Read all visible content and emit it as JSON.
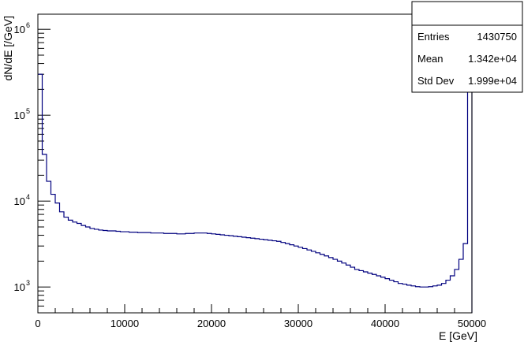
{
  "chart_data": {
    "type": "histogram",
    "xlabel": "E [GeV]",
    "ylabel": "dN/dE [/GeV]",
    "xlim": [
      0,
      50000
    ],
    "ylim": [
      500,
      1500000
    ],
    "yscale": "log",
    "grid": false,
    "x_ticks": [
      0,
      10000,
      20000,
      30000,
      40000,
      50000
    ],
    "y_ticks": [
      {
        "base": "10",
        "exp": "3",
        "value": 1000
      },
      {
        "base": "10",
        "exp": "4",
        "value": 10000
      },
      {
        "base": "10",
        "exp": "5",
        "value": 100000
      },
      {
        "base": "10",
        "exp": "6",
        "value": 1000000
      }
    ],
    "line_color": "#00007f",
    "bin_width": 500,
    "series": [
      {
        "values": [
          300000,
          35000,
          17000,
          12000,
          9500,
          7500,
          6500,
          6000,
          5700,
          5500,
          5200,
          5000,
          4800,
          4700,
          4600,
          4550,
          4500,
          4500,
          4450,
          4400,
          4400,
          4350,
          4350,
          4300,
          4300,
          4300,
          4250,
          4250,
          4250,
          4200,
          4200,
          4200,
          4150,
          4150,
          4200,
          4200,
          4250,
          4250,
          4250,
          4200,
          4150,
          4100,
          4050,
          4000,
          3950,
          3900,
          3850,
          3800,
          3750,
          3700,
          3650,
          3600,
          3550,
          3500,
          3450,
          3400,
          3300,
          3200,
          3100,
          3000,
          2900,
          2800,
          2700,
          2600,
          2500,
          2400,
          2300,
          2200,
          2100,
          2000,
          1900,
          1800,
          1700,
          1600,
          1550,
          1500,
          1450,
          1400,
          1350,
          1300,
          1250,
          1200,
          1150,
          1100,
          1080,
          1050,
          1030,
          1010,
          1000,
          1000,
          1010,
          1030,
          1050,
          1100,
          1200,
          1350,
          1600,
          2100,
          3200,
          700000
        ]
      }
    ]
  },
  "stats_box": {
    "title": "",
    "rows": [
      {
        "label": "Entries",
        "value": "1430750"
      },
      {
        "label": "Mean",
        "value": "1.342e+04"
      },
      {
        "label": "Std Dev",
        "value": "1.999e+04"
      }
    ]
  }
}
